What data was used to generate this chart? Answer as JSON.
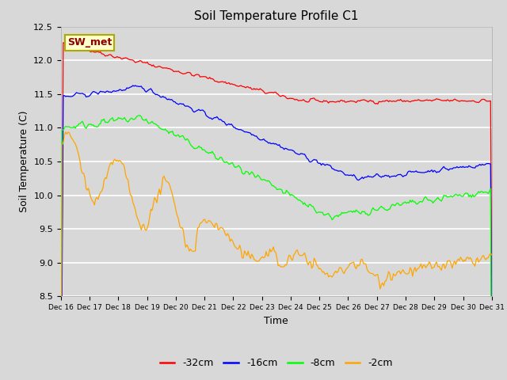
{
  "title": "Soil Temperature Profile C1",
  "xlabel": "Time",
  "ylabel": "Soil Temperature (C)",
  "ylim": [
    8.5,
    12.5
  ],
  "background_color": "#d8d8d8",
  "grid_color": "white",
  "tick_labels": [
    "Dec 16",
    "Dec 17",
    "Dec 18",
    "Dec 19",
    "Dec 20",
    "Dec 21",
    "Dec 22",
    "Dec 23",
    "Dec 24",
    "Dec 25",
    "Dec 26",
    "Dec 27",
    "Dec 28",
    "Dec 29",
    "Dec 30",
    "Dec 31"
  ],
  "annotation_box": {
    "text": "SW_met",
    "facecolor": "#ffffcc",
    "edgecolor": "#aaaa00",
    "textcolor": "#8b0000",
    "fontsize": 9
  },
  "series_colors": {
    "-32cm": "red",
    "-16cm": "blue",
    "-8cm": "lime",
    "-2cm": "orange"
  },
  "yticks": [
    8.5,
    9.0,
    9.5,
    10.0,
    10.5,
    11.0,
    11.5,
    12.0,
    12.5
  ]
}
